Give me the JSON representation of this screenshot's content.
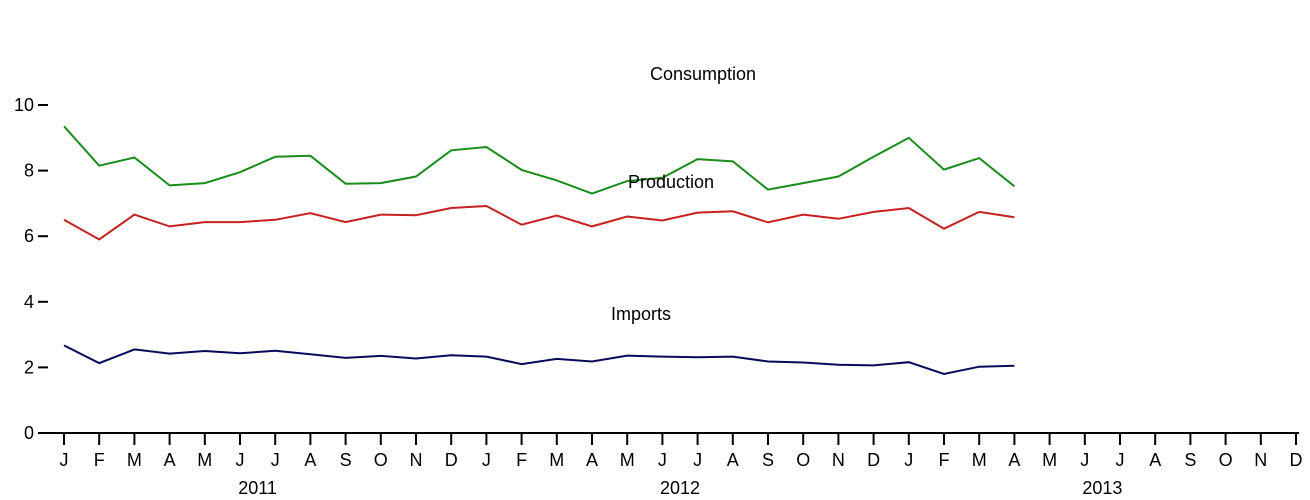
{
  "chart_data": {
    "type": "line",
    "title": "",
    "xlabel": "",
    "ylabel": "",
    "ylim": [
      0,
      10
    ],
    "yticks": [
      0,
      2,
      4,
      6,
      8,
      10
    ],
    "grid": false,
    "legend": "none",
    "x": [
      "2011-01",
      "2011-02",
      "2011-03",
      "2011-04",
      "2011-05",
      "2011-06",
      "2011-07",
      "2011-08",
      "2011-09",
      "2011-10",
      "2011-11",
      "2011-12",
      "2012-01",
      "2012-02",
      "2012-03",
      "2012-04",
      "2012-05",
      "2012-06",
      "2012-07",
      "2012-08",
      "2012-09",
      "2012-10",
      "2012-11",
      "2012-12",
      "2013-01",
      "2013-02",
      "2013-03",
      "2013-04"
    ],
    "xlim": [
      "2011-01",
      "2013-12"
    ],
    "month_tick_labels": [
      "J",
      "F",
      "M",
      "A",
      "M",
      "J",
      "J",
      "A",
      "S",
      "O",
      "N",
      "D",
      "J",
      "F",
      "M",
      "A",
      "M",
      "J",
      "J",
      "A",
      "S",
      "O",
      "N",
      "D",
      "J",
      "F",
      "M",
      "A",
      "M",
      "J",
      "J",
      "A",
      "S",
      "O",
      "N",
      "D"
    ],
    "year_labels": [
      "2011",
      "2012",
      "2013"
    ],
    "series": [
      {
        "name": "Consumption",
        "color": "#1a8c1a",
        "values": [
          9.35,
          8.15,
          8.4,
          7.55,
          7.62,
          7.95,
          8.42,
          8.45,
          7.6,
          7.62,
          7.82,
          8.62,
          8.72,
          8.02,
          7.7,
          7.3,
          7.68,
          7.78,
          8.35,
          8.28,
          7.42,
          7.62,
          7.82,
          8.42,
          9.0,
          8.03,
          8.38,
          7.52
        ]
      },
      {
        "name": "Production",
        "color": "#c8201e",
        "values": [
          6.5,
          5.9,
          6.66,
          6.3,
          6.43,
          6.43,
          6.5,
          6.7,
          6.43,
          6.66,
          6.64,
          6.86,
          6.92,
          6.35,
          6.63,
          6.3,
          6.6,
          6.48,
          6.72,
          6.76,
          6.42,
          6.66,
          6.53,
          6.74,
          6.86,
          6.23,
          6.74,
          6.58
        ]
      },
      {
        "name": "Imports",
        "color": "#0a0a5a",
        "values": [
          2.67,
          2.13,
          2.55,
          2.42,
          2.5,
          2.43,
          2.51,
          2.4,
          2.29,
          2.35,
          2.27,
          2.37,
          2.33,
          2.1,
          2.26,
          2.18,
          2.36,
          2.33,
          2.31,
          2.33,
          2.18,
          2.15,
          2.08,
          2.06,
          2.16,
          1.8,
          2.02,
          2.05
        ]
      }
    ]
  }
}
